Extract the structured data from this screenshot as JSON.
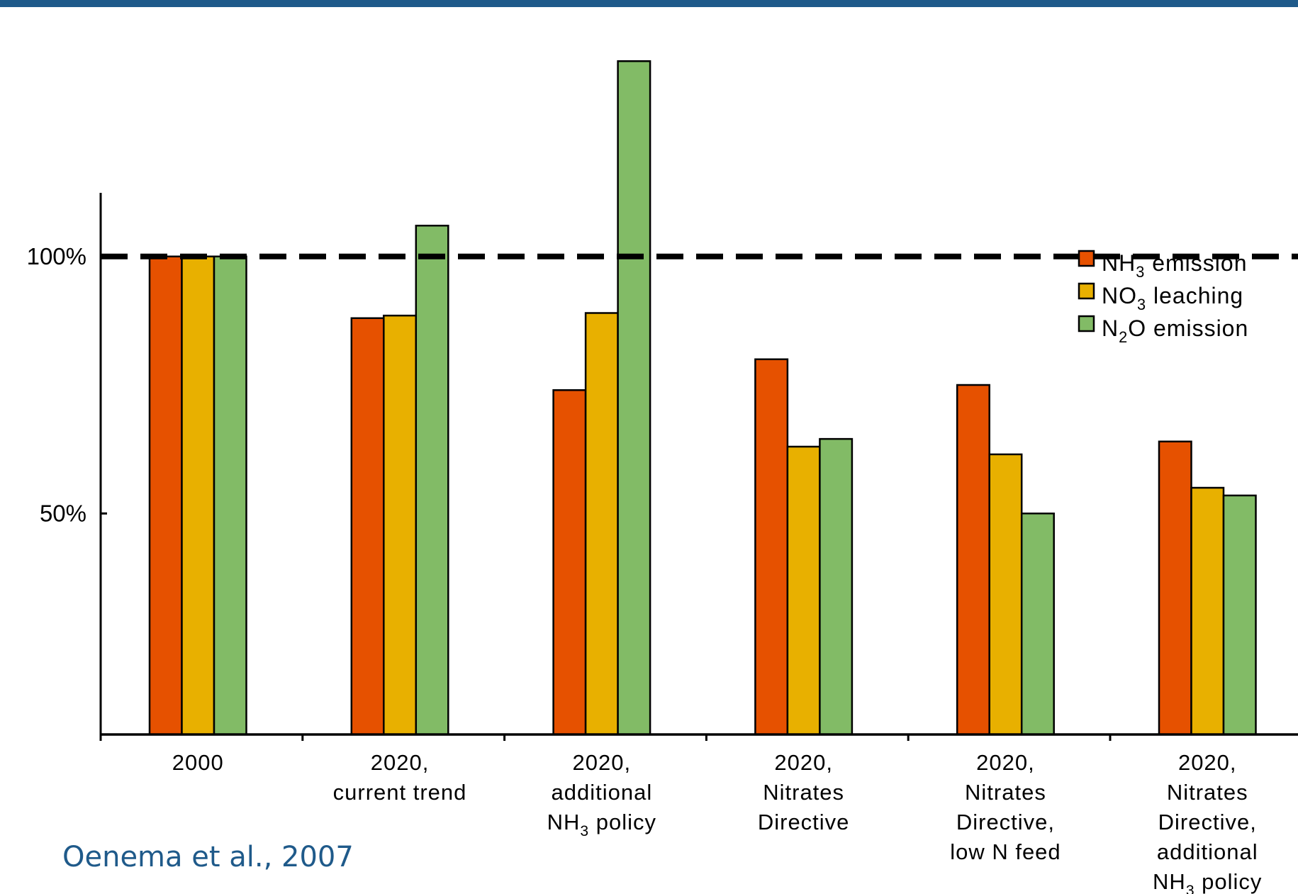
{
  "chart_data": {
    "type": "bar",
    "categories": [
      {
        "lines": [
          "2000"
        ]
      },
      {
        "lines": [
          "2020,",
          "current trend"
        ]
      },
      {
        "lines": [
          "2020,",
          "additional",
          "NH|3| policy"
        ]
      },
      {
        "lines": [
          "2020,",
          "Nitrates",
          "Directive"
        ]
      },
      {
        "lines": [
          "2020,",
          "Nitrates",
          "Directive,",
          "low N feed"
        ]
      },
      {
        "lines": [
          "2020,",
          "Nitrates",
          "Directive,",
          "additional",
          "NH|3| policy"
        ]
      }
    ],
    "series": [
      {
        "name": "NH|3| emission",
        "color": "#e65100",
        "values": [
          100,
          88,
          74,
          80,
          75,
          64
        ]
      },
      {
        "name": "NO|3| leaching",
        "color": "#e8b000",
        "values": [
          100,
          88.5,
          89,
          63,
          61.5,
          55
        ]
      },
      {
        "name": "N|2|O emission",
        "color": "#82bb66",
        "values": [
          100,
          106,
          138,
          64.5,
          50,
          53.5
        ]
      }
    ],
    "yticks": [
      {
        "value": 50,
        "label": "50%"
      },
      {
        "value": 100,
        "label": "100%"
      }
    ],
    "reference_line": {
      "value": 100,
      "style": "dashed"
    },
    "ylim": [
      7,
      138
    ],
    "legend_position": "right",
    "xlabel": "",
    "ylabel": ""
  },
  "source": "Oenema et al., 2007"
}
